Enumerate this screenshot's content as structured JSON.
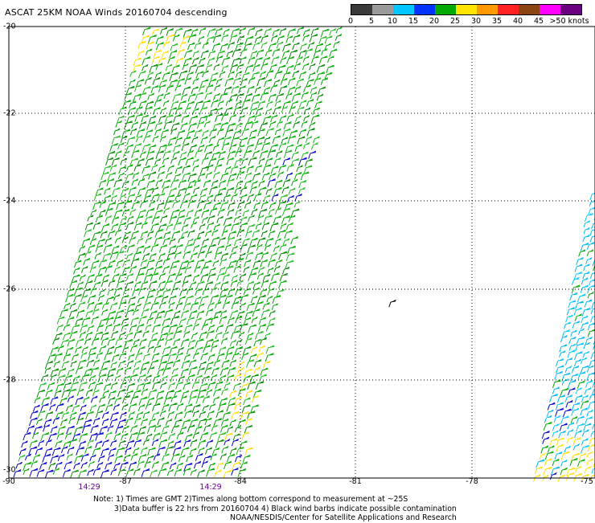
{
  "title": "ASCAT 25KM NOAA Winds 20160704 descending",
  "legend": {
    "labels": [
      "0",
      "5",
      "10",
      "15",
      "20",
      "25",
      "30",
      "35",
      "40",
      "45",
      ">50 knots"
    ],
    "colors": [
      "#3a3a3a",
      "#9a9a9a",
      "#00c8ff",
      "#0033ff",
      "#00aa00",
      "#ffe600",
      "#ff9900",
      "#ff2222",
      "#8b4513",
      "#ff00ff",
      "#6a0080"
    ]
  },
  "map": {
    "lat_labels": [
      "-20",
      "-22",
      "-24",
      "-26",
      "-28",
      "-30"
    ],
    "lon_labels": [
      "-90",
      "-87",
      "-84",
      "-81",
      "-78",
      "-75"
    ],
    "grid": true,
    "time_labels": [
      "14:29",
      "14:29"
    ],
    "swaths": [
      {
        "name": "swath-west",
        "dominant_speed_knots": "15-20",
        "color_main": "#00aa00"
      },
      {
        "name": "swath-east",
        "dominant_speed_knots": "5-15",
        "color_main": "#00c8ff"
      }
    ]
  },
  "notes": {
    "line1": "Note: 1) Times are GMT 2)Times along bottom correspond to measurement at ~25S",
    "line2": "3)Data buffer is 22 hrs from 20160704 4) Black wind barbs indicate possible contamination",
    "line3": "NOAA/NESDIS/Center for Satellite Applications and Research"
  }
}
